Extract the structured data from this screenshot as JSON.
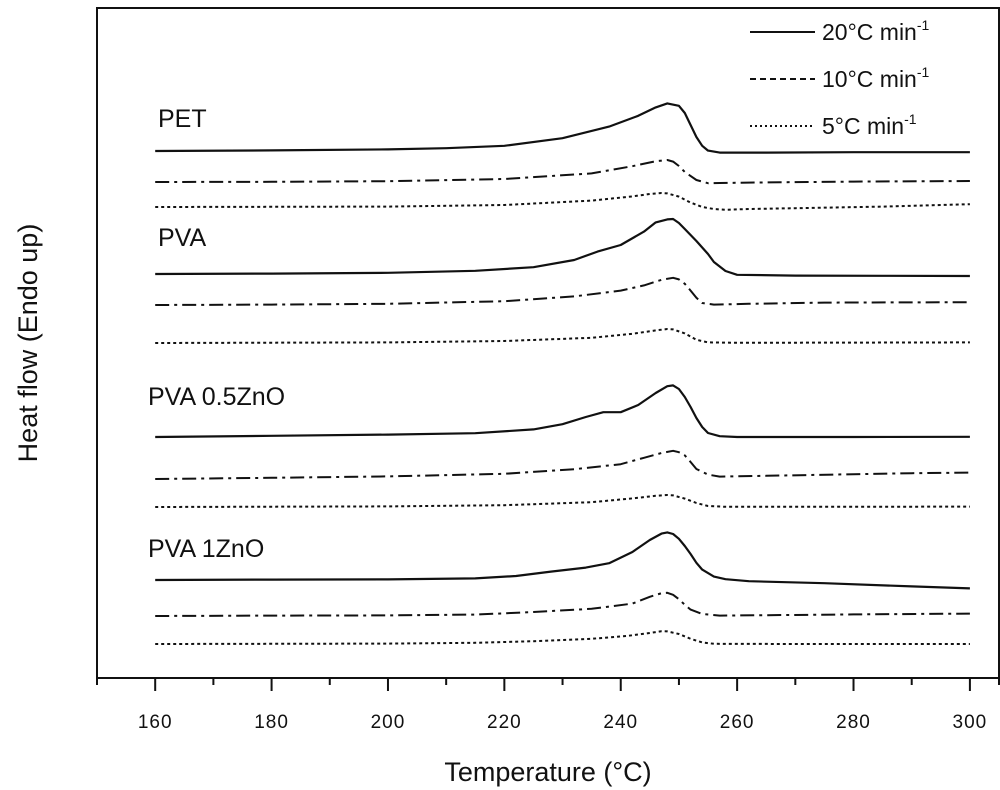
{
  "chart_data": {
    "type": "line",
    "xlabel": "Temperature (°C)",
    "ylabel": "Heat flow (Endo up)",
    "xlim": [
      150,
      305
    ],
    "x_ticks": [
      160,
      180,
      200,
      220,
      240,
      260,
      280,
      300
    ],
    "grid": false,
    "legend": {
      "placement": "top-right",
      "entries": [
        {
          "label": "20°C min",
          "sup": "-1",
          "style": "solid"
        },
        {
          "label": "10°C min",
          "sup": "-1",
          "style": "dash-dot"
        },
        {
          "label": "5°C min",
          "sup": "-1",
          "style": "dotted"
        }
      ]
    },
    "groups": [
      {
        "label": "PET",
        "curves": [
          {
            "rate": "20°C min-1",
            "style": "solid",
            "points": [
              [
                160,
                0
              ],
              [
                180,
                0.3
              ],
              [
                200,
                0.8
              ],
              [
                210,
                1.4
              ],
              [
                220,
                2.6
              ],
              [
                230,
                6.4
              ],
              [
                238,
                12.2
              ],
              [
                243,
                17.6
              ],
              [
                246,
                21.8
              ],
              [
                248,
                23.8
              ],
              [
                250,
                22.6
              ],
              [
                251,
                19
              ],
              [
                252,
                13
              ],
              [
                253,
                7
              ],
              [
                254,
                2.6
              ],
              [
                255,
                0.2
              ],
              [
                257,
                -0.8
              ],
              [
                265,
                -0.8
              ],
              [
                280,
                -0.6
              ],
              [
                300,
                -0.6
              ]
            ]
          },
          {
            "rate": "10°C min-1",
            "style": "dash-dot",
            "points": [
              [
                160,
                0
              ],
              [
                180,
                0.1
              ],
              [
                200,
                0.4
              ],
              [
                220,
                1.5
              ],
              [
                235,
                4.3
              ],
              [
                242,
                7.9
              ],
              [
                246,
                10.4
              ],
              [
                248,
                11
              ],
              [
                249,
                10.2
              ],
              [
                250,
                8
              ],
              [
                251,
                5
              ],
              [
                253,
                1
              ],
              [
                255,
                -0.6
              ],
              [
                257,
                -0.5
              ],
              [
                265,
                -0.2
              ],
              [
                280,
                0.2
              ],
              [
                300,
                0.5
              ]
            ]
          },
          {
            "rate": "5°C min-1",
            "style": "dotted",
            "points": [
              [
                160,
                0
              ],
              [
                200,
                0.2
              ],
              [
                220,
                1
              ],
              [
                235,
                3.2
              ],
              [
                242,
                5.3
              ],
              [
                245,
                6.5
              ],
              [
                247,
                7
              ],
              [
                248,
                6.8
              ],
              [
                250,
                5.2
              ],
              [
                252,
                2.2
              ],
              [
                254,
                0
              ],
              [
                256,
                -1
              ],
              [
                258,
                -1.4
              ],
              [
                262,
                -1
              ],
              [
                270,
                -0.6
              ],
              [
                285,
                0.2
              ],
              [
                300,
                1.4
              ]
            ]
          }
        ]
      },
      {
        "label": "PVA",
        "curves": [
          {
            "rate": "20°C min-1",
            "style": "solid",
            "points": [
              [
                160,
                0
              ],
              [
                180,
                0.2
              ],
              [
                200,
                0.6
              ],
              [
                215,
                1.6
              ],
              [
                225,
                3.4
              ],
              [
                232,
                7
              ],
              [
                236,
                11.2
              ],
              [
                240,
                14.5
              ],
              [
                244,
                21.2
              ],
              [
                246,
                25.8
              ],
              [
                248,
                27.3
              ],
              [
                249,
                27.5
              ],
              [
                250,
                25.5
              ],
              [
                251,
                22.5
              ],
              [
                253,
                16.5
              ],
              [
                255,
                10
              ],
              [
                256,
                6
              ],
              [
                258,
                1.5
              ],
              [
                260,
                -0.4
              ],
              [
                270,
                -0.8
              ],
              [
                285,
                -0.9
              ],
              [
                300,
                -1
              ]
            ]
          },
          {
            "rate": "10°C min-1",
            "style": "dash-dot",
            "points": [
              [
                160,
                0
              ],
              [
                180,
                0.2
              ],
              [
                200,
                0.6
              ],
              [
                220,
                1.9
              ],
              [
                232,
                4.3
              ],
              [
                240,
                7.2
              ],
              [
                244,
                9.8
              ],
              [
                247,
                12.6
              ],
              [
                249,
                13.6
              ],
              [
                250,
                12.8
              ],
              [
                251,
                10.6
              ],
              [
                252,
                7.2
              ],
              [
                253,
                3.6
              ],
              [
                254,
                1
              ],
              [
                256,
                0.2
              ],
              [
                262,
                0.6
              ],
              [
                275,
                1.2
              ],
              [
                300,
                1.4
              ]
            ]
          },
          {
            "rate": "5°C min-1",
            "style": "dotted",
            "points": [
              [
                160,
                0
              ],
              [
                200,
                0.3
              ],
              [
                220,
                1
              ],
              [
                235,
                2.6
              ],
              [
                242,
                4.6
              ],
              [
                246,
                6.3
              ],
              [
                248,
                7
              ],
              [
                249,
                6.8
              ],
              [
                251,
                4.8
              ],
              [
                253,
                1.6
              ],
              [
                255,
                0.3
              ],
              [
                260,
                0.1
              ],
              [
                280,
                0.2
              ],
              [
                300,
                0.3
              ]
            ]
          }
        ]
      },
      {
        "label": "PVA 0.5ZnO",
        "curves": [
          {
            "rate": "20°C min-1",
            "style": "solid",
            "points": [
              [
                160,
                0
              ],
              [
                180,
                0.6
              ],
              [
                200,
                1.2
              ],
              [
                215,
                1.9
              ],
              [
                225,
                3.8
              ],
              [
                230,
                6.4
              ],
              [
                234,
                10
              ],
              [
                237,
                12.4
              ],
              [
                240,
                12.4
              ],
              [
                243,
                16
              ],
              [
                246,
                22
              ],
              [
                248,
                25.4
              ],
              [
                249,
                25.8
              ],
              [
                250,
                24
              ],
              [
                251,
                20
              ],
              [
                252,
                15
              ],
              [
                253,
                9.5
              ],
              [
                254,
                5
              ],
              [
                255,
                2
              ],
              [
                257,
                0.4
              ],
              [
                260,
                0
              ],
              [
                280,
                0
              ],
              [
                300,
                0.1
              ]
            ]
          },
          {
            "rate": "10°C min-1",
            "style": "dash-dot",
            "points": [
              [
                160,
                0
              ],
              [
                180,
                0.6
              ],
              [
                200,
                1.3
              ],
              [
                220,
                2.6
              ],
              [
                232,
                4.9
              ],
              [
                240,
                7.4
              ],
              [
                244,
                10.6
              ],
              [
                247,
                13
              ],
              [
                249,
                14.1
              ],
              [
                250,
                13.4
              ],
              [
                251,
                11.8
              ],
              [
                252,
                8.5
              ],
              [
                253,
                5
              ],
              [
                255,
                2.2
              ],
              [
                257,
                1.2
              ],
              [
                265,
                1.6
              ],
              [
                280,
                2.4
              ],
              [
                290,
                2.9
              ],
              [
                300,
                3.2
              ]
            ]
          },
          {
            "rate": "5°C min-1",
            "style": "dotted",
            "points": [
              [
                160,
                0
              ],
              [
                200,
                0.3
              ],
              [
                220,
                0.9
              ],
              [
                235,
                2.4
              ],
              [
                242,
                4.3
              ],
              [
                246,
                5.6
              ],
              [
                248,
                6
              ],
              [
                249,
                5.8
              ],
              [
                251,
                4.2
              ],
              [
                253,
                2
              ],
              [
                255,
                0.5
              ],
              [
                258,
                0.1
              ],
              [
                280,
                0.1
              ],
              [
                300,
                0.2
              ]
            ]
          }
        ]
      },
      {
        "label": "PVA 1ZnO",
        "curves": [
          {
            "rate": "20°C min-1",
            "style": "solid",
            "points": [
              [
                160,
                0
              ],
              [
                180,
                0.2
              ],
              [
                200,
                0.3
              ],
              [
                215,
                0.8
              ],
              [
                222,
                2
              ],
              [
                228,
                4.2
              ],
              [
                234,
                6.2
              ],
              [
                238,
                8.4
              ],
              [
                242,
                14
              ],
              [
                245,
                20
              ],
              [
                247,
                23.2
              ],
              [
                248,
                23.8
              ],
              [
                249,
                23
              ],
              [
                250,
                20.6
              ],
              [
                251,
                17
              ],
              [
                252,
                13
              ],
              [
                253,
                8.6
              ],
              [
                254,
                5.2
              ],
              [
                256,
                1.7
              ],
              [
                258,
                0.4
              ],
              [
                262,
                -0.6
              ],
              [
                275,
                -1.6
              ],
              [
                290,
                -3.2
              ],
              [
                300,
                -4.2
              ]
            ]
          },
          {
            "rate": "10°C min-1",
            "style": "dash-dot",
            "points": [
              [
                160,
                0
              ],
              [
                180,
                0.2
              ],
              [
                200,
                0.3
              ],
              [
                215,
                0.7
              ],
              [
                225,
                2
              ],
              [
                235,
                3.6
              ],
              [
                242,
                6.2
              ],
              [
                245,
                9.6
              ],
              [
                247,
                11.4
              ],
              [
                248,
                11.6
              ],
              [
                249,
                10.6
              ],
              [
                250,
                8.4
              ],
              [
                251,
                5.6
              ],
              [
                252,
                3.2
              ],
              [
                254,
                1
              ],
              [
                257,
                0.2
              ],
              [
                265,
                0.4
              ],
              [
                280,
                0.8
              ],
              [
                300,
                1.2
              ]
            ]
          },
          {
            "rate": "5°C min-1",
            "style": "dotted",
            "points": [
              [
                160,
                0
              ],
              [
                200,
                0.2
              ],
              [
                215,
                0.6
              ],
              [
                225,
                1.4
              ],
              [
                235,
                2.6
              ],
              [
                241,
                4
              ],
              [
                245,
                5.5
              ],
              [
                247,
                6.4
              ],
              [
                248,
                6.3
              ],
              [
                250,
                5
              ],
              [
                252,
                2.6
              ],
              [
                254,
                0.8
              ],
              [
                256,
                0.1
              ],
              [
                270,
                0
              ],
              [
                300,
                0
              ]
            ]
          }
        ]
      }
    ]
  }
}
